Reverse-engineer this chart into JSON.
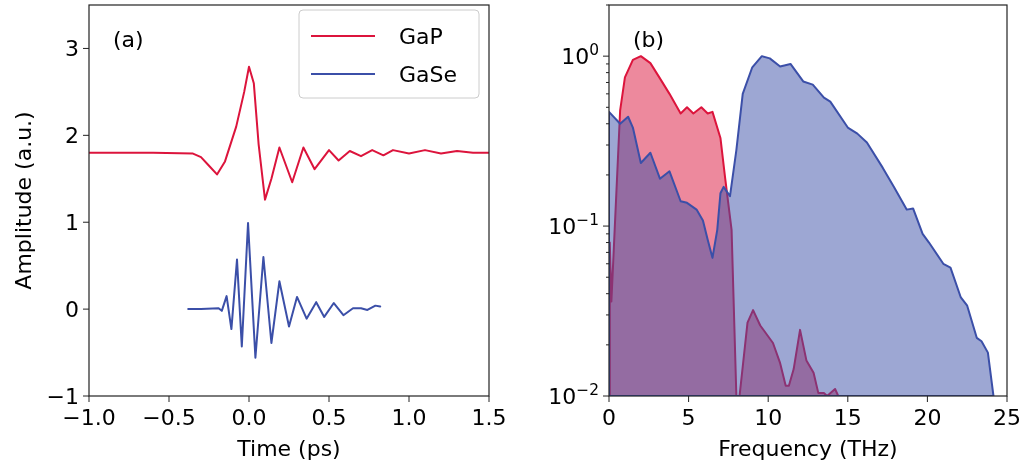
{
  "chart_data": [
    {
      "type": "line",
      "xlabel": "Time (ps)",
      "ylabel": "Amplitude (a.u.)",
      "annotations": [
        "(a)"
      ],
      "legend": "top right",
      "xlim": [
        -1.0,
        1.5
      ],
      "ylim": [
        -1,
        3.5
      ],
      "xticks": [
        {
          "value": -1.0,
          "label": "−1.0"
        },
        {
          "value": -0.5,
          "label": "−0.5"
        },
        {
          "value": 0,
          "label": "0.0"
        },
        {
          "value": 0.5,
          "label": "0.5"
        },
        {
          "value": 1.0,
          "label": "1.0"
        },
        {
          "value": 1.5,
          "label": "1.5"
        }
      ],
      "yticks": [
        {
          "value": -1,
          "label": "−1"
        },
        0,
        1,
        2,
        3
      ],
      "series": [
        {
          "name": "GaP",
          "color": "#dc143c",
          "x": [
            -1.0,
            -0.6,
            -0.35,
            -0.3,
            -0.25,
            -0.2,
            -0.15,
            -0.08,
            -0.03,
            0,
            0.03,
            0.06,
            0.1,
            0.14,
            0.19,
            0.27,
            0.34,
            0.41,
            0.5,
            0.56,
            0.63,
            0.7,
            0.77,
            0.84,
            0.9,
            1.0,
            1.1,
            1.2,
            1.3,
            1.4,
            1.5
          ],
          "values": [
            1.8,
            1.8,
            1.79,
            1.75,
            1.65,
            1.55,
            1.7,
            2.1,
            2.5,
            2.79,
            2.6,
            1.9,
            1.26,
            1.5,
            1.86,
            1.46,
            1.86,
            1.61,
            1.83,
            1.71,
            1.82,
            1.76,
            1.83,
            1.77,
            1.83,
            1.79,
            1.83,
            1.79,
            1.82,
            1.8,
            1.8
          ]
        },
        {
          "name": "GaSe",
          "color": "#3b4fa8",
          "x": [
            -0.38,
            -0.3,
            -0.19,
            -0.17,
            -0.14,
            -0.11,
            -0.075,
            -0.045,
            -0.006,
            0.04,
            0.09,
            0.14,
            0.19,
            0.25,
            0.3,
            0.36,
            0.42,
            0.47,
            0.53,
            0.59,
            0.65,
            0.7,
            0.74,
            0.79,
            0.82
          ],
          "values": [
            0,
            0,
            0.01,
            -0.02,
            0.15,
            -0.23,
            0.57,
            -0.43,
            0.99,
            -0.56,
            0.6,
            -0.39,
            0.32,
            -0.2,
            0.14,
            -0.11,
            0.08,
            -0.09,
            0.07,
            -0.07,
            0.01,
            0.01,
            -0.01,
            0.04,
            0.03
          ]
        }
      ]
    },
    {
      "type": "area",
      "xlabel": "Frequency (THz)",
      "annotations": [
        "(b)"
      ],
      "log": "y",
      "xlim": [
        0,
        25
      ],
      "ylim": [
        0.01,
        2
      ],
      "xticks": [
        0,
        5,
        10,
        15,
        20,
        25
      ],
      "yticks": [
        {
          "value": 0.01,
          "label": "10$^{−2}$"
        },
        {
          "value": 0.02,
          "label": null
        },
        {
          "value": 0.03,
          "label": null
        },
        {
          "value": 0.04,
          "label": null
        },
        {
          "value": 0.05,
          "label": null
        },
        {
          "value": 0.06,
          "label": null
        },
        {
          "value": 0.07,
          "label": null
        },
        {
          "value": 0.08,
          "label": null
        },
        {
          "value": 0.09,
          "label": null
        },
        {
          "value": 0.1,
          "label": "10$^{−1}$"
        },
        {
          "value": 0.2,
          "label": null
        },
        {
          "value": 0.3,
          "label": null
        },
        {
          "value": 0.4,
          "label": null
        },
        {
          "value": 0.5,
          "label": null
        },
        {
          "value": 0.6,
          "label": null
        },
        {
          "value": 0.7,
          "label": null
        },
        {
          "value": 0.8,
          "label": null
        },
        {
          "value": 0.9,
          "label": null
        },
        {
          "value": 1,
          "label": "10$^{0}$"
        },
        {
          "value": 2,
          "label": null
        }
      ],
      "series": [
        {
          "color": "#dc143c",
          "x": [
            0.05,
            0.15,
            0.7,
            1.0,
            1.5,
            2.0,
            2.6,
            3.2,
            3.8,
            4.5,
            4.9,
            5.3,
            5.8,
            6.2,
            6.5,
            7.0,
            7.3,
            7.7,
            8.0,
            8.2,
            8.7,
            9.05,
            9.5,
            10.3,
            10.75,
            11.1,
            11.3,
            11.6,
            12.0,
            12.4,
            12.85,
            13.15,
            13.5,
            13.7,
            14.2,
            14.4
          ],
          "values": [
            0.08,
            0.036,
            0.48,
            0.75,
            0.95,
            1.0,
            0.91,
            0.74,
            0.6,
            0.46,
            0.5,
            0.46,
            0.5,
            0.46,
            0.47,
            0.33,
            0.19,
            0.095,
            0.01,
            0.01,
            0.027,
            0.032,
            0.026,
            0.0205,
            0.0156,
            0.0115,
            0.0115,
            0.0144,
            0.0245,
            0.0162,
            0.0137,
            0.0104,
            0.0104,
            0.01,
            0.011,
            0.01
          ]
        },
        {
          "color": "#3b4fa8",
          "x": [
            0,
            0.7,
            1.2,
            1.5,
            2.0,
            2.6,
            3.2,
            3.8,
            4.5,
            4.9,
            5.5,
            5.9,
            6.2,
            6.5,
            6.8,
            7.0,
            7.2,
            7.6,
            8.0,
            8.4,
            9.0,
            9.6,
            10.1,
            10.75,
            11.4,
            12.2,
            12.8,
            13.5,
            13.9,
            15.0,
            15.6,
            16.2,
            17.2,
            17.9,
            18.7,
            19.1,
            19.7,
            20.1,
            21.0,
            21.45,
            22.1,
            22.5,
            23.1,
            23.4,
            23.8,
            24.15
          ],
          "values": [
            0.47,
            0.4,
            0.44,
            0.38,
            0.235,
            0.27,
            0.19,
            0.21,
            0.14,
            0.137,
            0.125,
            0.108,
            0.083,
            0.065,
            0.095,
            0.156,
            0.17,
            0.15,
            0.28,
            0.6,
            0.86,
            1.0,
            0.97,
            0.87,
            0.9,
            0.71,
            0.68,
            0.57,
            0.54,
            0.38,
            0.35,
            0.31,
            0.22,
            0.17,
            0.125,
            0.127,
            0.09,
            0.08,
            0.06,
            0.057,
            0.038,
            0.034,
            0.022,
            0.021,
            0.018,
            0.01
          ]
        }
      ]
    }
  ]
}
